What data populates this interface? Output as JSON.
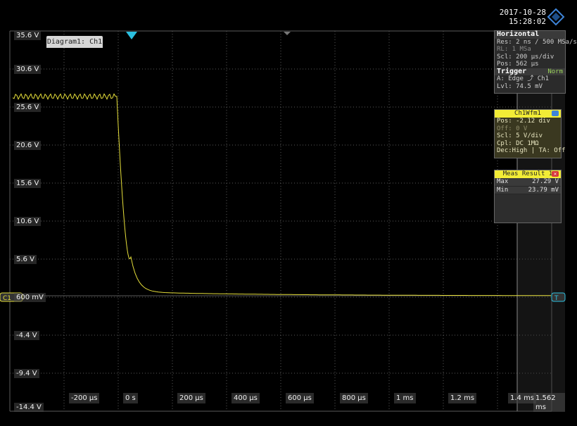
{
  "timestamp": {
    "date": "2017-10-28",
    "time": "15:28:02"
  },
  "diagram_tab": "Diagram1: Ch1",
  "y_axis_labels": [
    "35.6 V",
    "30.6 V",
    "25.6 V",
    "20.6 V",
    "15.6 V",
    "10.6 V",
    "5.6 V",
    "600 mV",
    "-4.4 V",
    "-9.4 V",
    "-14.4 V"
  ],
  "x_axis_labels": [
    "-200 µs",
    "0 s",
    "200 µs",
    "400 µs",
    "600 µs",
    "800 µs",
    "1 ms",
    "1.2 ms",
    "1.4 ms",
    "1.562 ms"
  ],
  "channel_marker": "C1",
  "horizontal_panel": {
    "title": "Horizontal",
    "res": "Res: 2 ns / 500 MSa/s",
    "rl": "RL: 1 MSa",
    "scl": "Scl: 200 µs/div",
    "pos": "Pos: 562 µs",
    "trigger_title": "Trigger",
    "trigger_mode": "Norm",
    "trigger_edge": "A: Edge ⤴ Ch1",
    "trigger_level": "Lvl: 74.5 mV"
  },
  "ch1_panel": {
    "title": "Ch1Wfm1",
    "pos": "Pos: -2.12 div",
    "off": "Off: 0 V",
    "scl": "Scl: 5 V/div",
    "cpl": "Cpl: DC 1MΩ",
    "dec": "Dec:High | TA: Off"
  },
  "meas_panel": {
    "title": "Meas Result 1",
    "rows": [
      {
        "label": "Max",
        "value": "27.29 V"
      },
      {
        "label": "Min",
        "value": "23.79 mV"
      }
    ]
  },
  "colors": {
    "trace": "#e6df3a",
    "grid": "#5a5a5a",
    "trigger_marker": "#2bc0e0",
    "accent_yellow": "#f2ec36",
    "badge_blue": "#3e84d8",
    "badge_red": "#d8383e"
  },
  "icons": {
    "trigger_marker": "triangle-down-icon",
    "logo": "rohde-schwarz-diamond-icon"
  }
}
